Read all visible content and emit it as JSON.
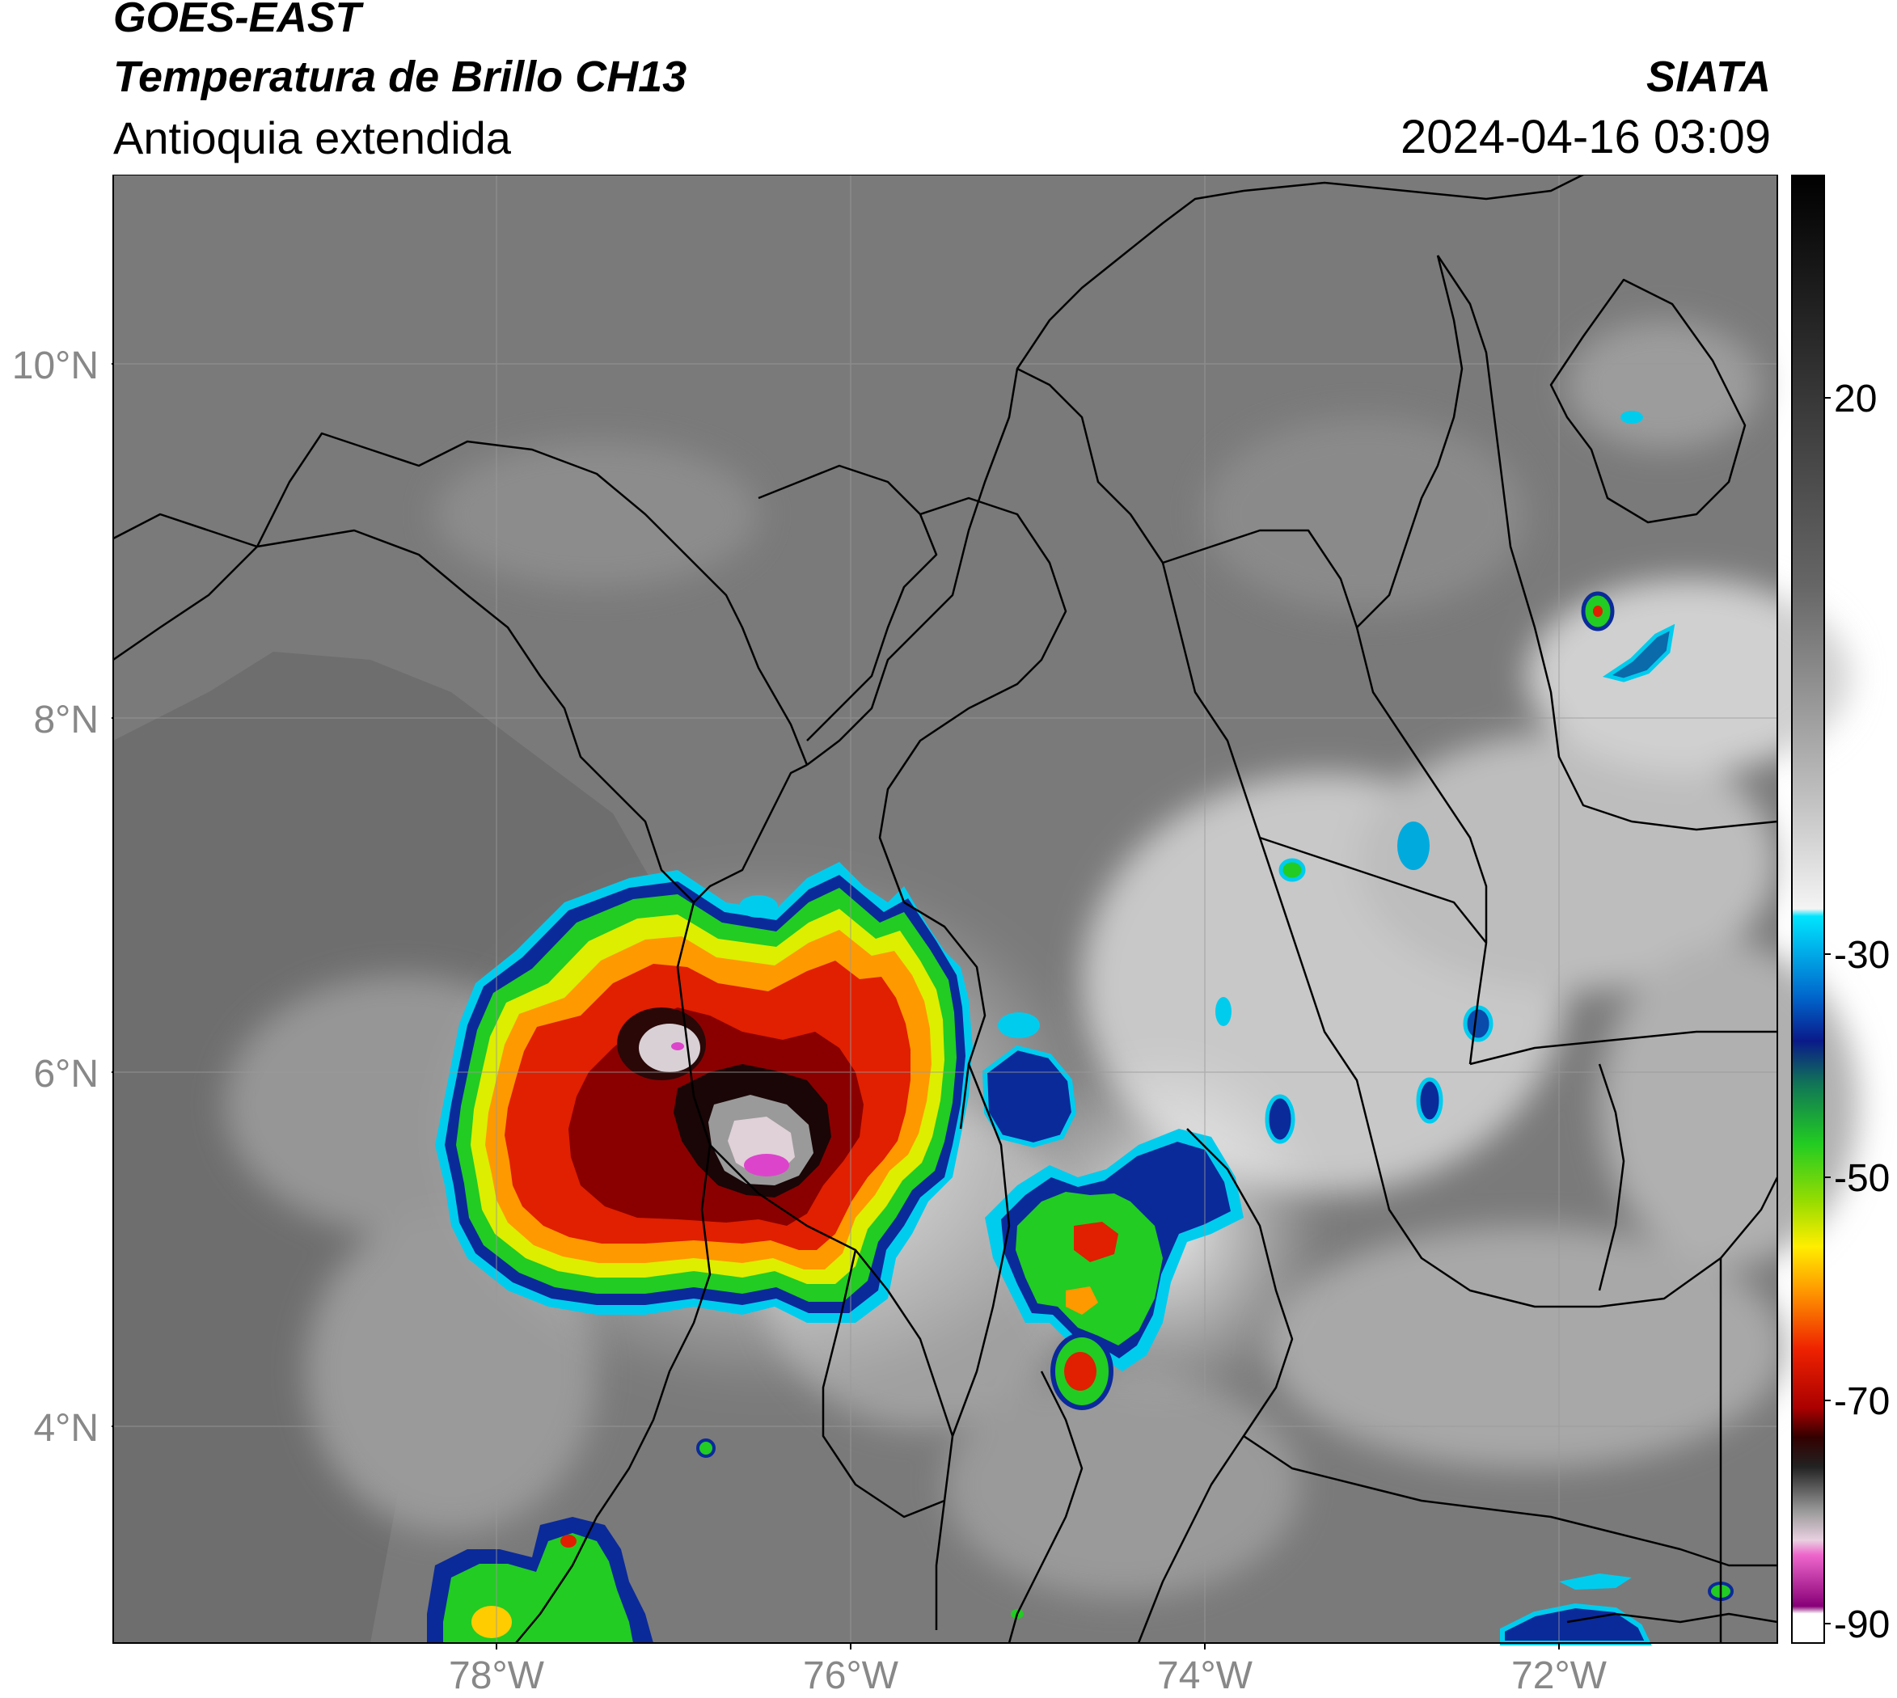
{
  "header": {
    "title_line1": "GOES-EAST",
    "title_line2": "Temperatura de Brillo CH13",
    "subtitle": "Antioquia extendida",
    "organization": "SIATA",
    "datetime": "2024-04-16 03:09"
  },
  "axes": {
    "lat_labels": [
      "10°N",
      "8°N",
      "6°N",
      "4°N"
    ],
    "lon_labels": [
      "78°W",
      "76°W",
      "74°W",
      "72°W"
    ],
    "lat_range": [
      2.7,
      11.0
    ],
    "lon_range": [
      -80.2,
      -70.8
    ],
    "grid": true
  },
  "colorbar": {
    "labels": [
      "20",
      "-30",
      "-50",
      "-70",
      "-90"
    ],
    "values": [
      20,
      -30,
      -50,
      -70,
      -90
    ],
    "range": [
      -92,
      37
    ],
    "colors": {
      "warm": "#000000",
      "mid_gray": "#808080",
      "cold_white": "#ffffff",
      "cyan": "#00e5ff",
      "blue": "#0a2a9a",
      "green": "#22cc22",
      "yellow": "#ffee00",
      "orange": "#ff8a00",
      "red": "#dd1100",
      "dark_red": "#550000",
      "magenta": "#dd44cc",
      "purple": "#880077"
    }
  }
}
